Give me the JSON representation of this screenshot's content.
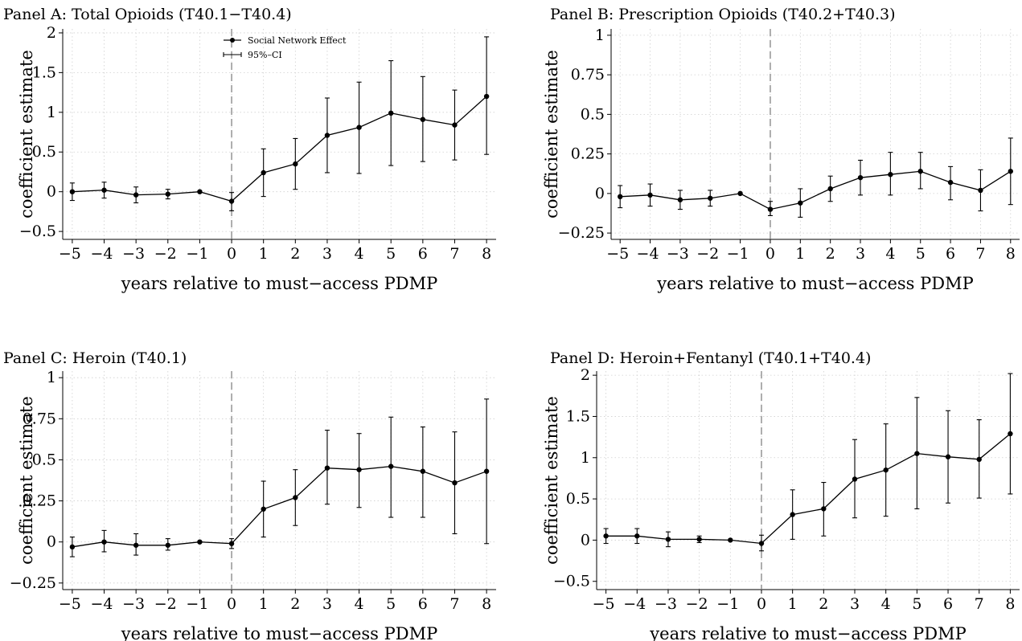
{
  "legend": {
    "point_label": "Social Network Effect",
    "ci_label": "95%–CI"
  },
  "chart_data": [
    {
      "type": "line",
      "title": "Panel A: Total Opioids (T40.1−T40.4)",
      "xlabel": "years relative to must−access PDMP",
      "ylabel": "coefficient estimate",
      "x": [
        -5,
        -4,
        -3,
        -2,
        -1,
        0,
        1,
        2,
        3,
        4,
        5,
        6,
        7,
        8
      ],
      "xticks": [
        "−5",
        "−4",
        "−3",
        "−2",
        "−1",
        "0",
        "1",
        "2",
        "3",
        "4",
        "5",
        "6",
        "7",
        "8"
      ],
      "yticks": [
        {
          "v": -0.5,
          "t": "−0.5"
        },
        {
          "v": 0,
          "t": "0"
        },
        {
          "v": 0.5,
          "t": "0.5"
        },
        {
          "v": 1,
          "t": "1"
        },
        {
          "v": 1.5,
          "t": "1.5"
        },
        {
          "v": 2,
          "t": "2"
        }
      ],
      "ylim": [
        -0.6,
        2.05
      ],
      "ref_x": 0,
      "grid": true,
      "legend": true,
      "legend_position": "top-center",
      "series": [
        {
          "name": "Social Network Effect",
          "values": [
            0.0,
            0.02,
            -0.04,
            -0.03,
            0.0,
            -0.12,
            0.24,
            0.35,
            0.71,
            0.81,
            0.99,
            0.91,
            0.84,
            1.2
          ],
          "ci_low": [
            -0.11,
            -0.08,
            -0.14,
            -0.09,
            0.0,
            -0.24,
            -0.06,
            0.03,
            0.24,
            0.23,
            0.33,
            0.38,
            0.4,
            0.47
          ],
          "ci_high": [
            0.11,
            0.12,
            0.06,
            0.03,
            0.0,
            -0.01,
            0.54,
            0.67,
            1.18,
            1.38,
            1.65,
            1.45,
            1.28,
            1.95
          ]
        }
      ]
    },
    {
      "type": "line",
      "title": "Panel B: Prescription Opioids (T40.2+T40.3)",
      "xlabel": "years relative to must−access PDMP",
      "ylabel": "coefficient estimate",
      "x": [
        -5,
        -4,
        -3,
        -2,
        -1,
        0,
        1,
        2,
        3,
        4,
        5,
        6,
        7,
        8
      ],
      "xticks": [
        "−5",
        "−4",
        "−3",
        "−2",
        "−1",
        "0",
        "1",
        "2",
        "3",
        "4",
        "5",
        "6",
        "7",
        "8"
      ],
      "yticks": [
        {
          "v": -0.25,
          "t": "−0.25"
        },
        {
          "v": 0,
          "t": "0"
        },
        {
          "v": 0.25,
          "t": "0.25"
        },
        {
          "v": 0.5,
          "t": "0.5"
        },
        {
          "v": 0.75,
          "t": "0.75"
        },
        {
          "v": 1,
          "t": "1"
        }
      ],
      "ylim": [
        -0.29,
        1.04
      ],
      "ref_x": 0,
      "grid": true,
      "legend": false,
      "series": [
        {
          "name": "Social Network Effect",
          "values": [
            -0.02,
            -0.01,
            -0.04,
            -0.03,
            0.0,
            -0.1,
            -0.06,
            0.03,
            0.1,
            0.12,
            0.14,
            0.07,
            0.02,
            0.14
          ],
          "ci_low": [
            -0.09,
            -0.08,
            -0.1,
            -0.08,
            0.0,
            -0.14,
            -0.15,
            -0.05,
            -0.01,
            -0.01,
            0.03,
            -0.04,
            -0.11,
            -0.07
          ],
          "ci_high": [
            0.05,
            0.06,
            0.02,
            0.02,
            0.0,
            -0.05,
            0.03,
            0.11,
            0.21,
            0.26,
            0.26,
            0.17,
            0.15,
            0.35
          ]
        }
      ]
    },
    {
      "type": "line",
      "title": "Panel C: Heroin (T40.1)",
      "xlabel": "years relative to must−access PDMP",
      "ylabel": "coefficient estimate",
      "x": [
        -5,
        -4,
        -3,
        -2,
        -1,
        0,
        1,
        2,
        3,
        4,
        5,
        6,
        7,
        8
      ],
      "xticks": [
        "−5",
        "−4",
        "−3",
        "−2",
        "−1",
        "0",
        "1",
        "2",
        "3",
        "4",
        "5",
        "6",
        "7",
        "8"
      ],
      "yticks": [
        {
          "v": -0.25,
          "t": "−0.25"
        },
        {
          "v": 0,
          "t": "0"
        },
        {
          "v": 0.25,
          "t": "0.25"
        },
        {
          "v": 0.5,
          "t": "0.5"
        },
        {
          "v": 0.75,
          "t": "0.75"
        },
        {
          "v": 1,
          "t": "1"
        }
      ],
      "ylim": [
        -0.29,
        1.04
      ],
      "ref_x": 0,
      "grid": true,
      "legend": false,
      "series": [
        {
          "name": "Social Network Effect",
          "values": [
            -0.03,
            0.0,
            -0.02,
            -0.02,
            0.0,
            -0.01,
            0.2,
            0.27,
            0.45,
            0.44,
            0.46,
            0.43,
            0.36,
            0.43
          ],
          "ci_low": [
            -0.09,
            -0.06,
            -0.08,
            -0.05,
            0.0,
            -0.04,
            0.03,
            0.1,
            0.23,
            0.21,
            0.15,
            0.15,
            0.05,
            -0.01
          ],
          "ci_high": [
            0.03,
            0.07,
            0.05,
            0.02,
            0.0,
            0.02,
            0.37,
            0.44,
            0.68,
            0.66,
            0.76,
            0.7,
            0.67,
            0.87
          ]
        }
      ]
    },
    {
      "type": "line",
      "title": "Panel D: Heroin+Fentanyl (T40.1+T40.4)",
      "xlabel": "years relative to must−access PDMP",
      "ylabel": "coefficient estimate",
      "x": [
        -5,
        -4,
        -3,
        -2,
        -1,
        0,
        1,
        2,
        3,
        4,
        5,
        6,
        7,
        8
      ],
      "xticks": [
        "−5",
        "−4",
        "−3",
        "−2",
        "−1",
        "0",
        "1",
        "2",
        "3",
        "4",
        "5",
        "6",
        "7",
        "8"
      ],
      "yticks": [
        {
          "v": -0.5,
          "t": "−0.5"
        },
        {
          "v": 0,
          "t": "0"
        },
        {
          "v": 0.5,
          "t": "0.5"
        },
        {
          "v": 1,
          "t": "1"
        },
        {
          "v": 1.5,
          "t": "1.5"
        },
        {
          "v": 2,
          "t": "2"
        }
      ],
      "ylim": [
        -0.6,
        2.05
      ],
      "ref_x": 0,
      "grid": true,
      "legend": false,
      "series": [
        {
          "name": "Social Network Effect",
          "values": [
            0.05,
            0.05,
            0.01,
            0.01,
            0.0,
            -0.04,
            0.31,
            0.38,
            0.74,
            0.85,
            1.05,
            1.01,
            0.98,
            1.29
          ],
          "ci_low": [
            -0.04,
            -0.04,
            -0.08,
            -0.03,
            0.0,
            -0.13,
            0.01,
            0.05,
            0.27,
            0.29,
            0.38,
            0.45,
            0.51,
            0.56
          ],
          "ci_high": [
            0.14,
            0.14,
            0.1,
            0.05,
            0.0,
            0.06,
            0.61,
            0.7,
            1.22,
            1.41,
            1.73,
            1.57,
            1.46,
            2.02
          ]
        }
      ]
    }
  ]
}
